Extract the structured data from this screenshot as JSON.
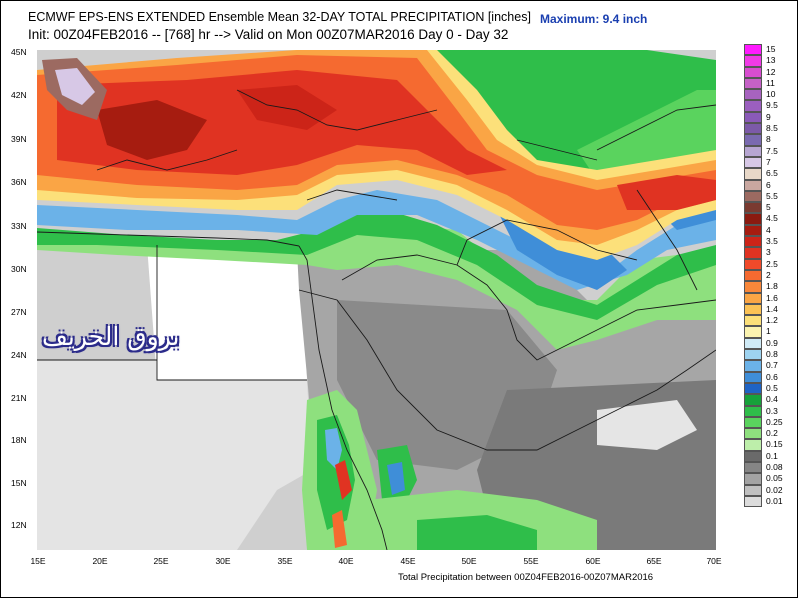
{
  "header": {
    "line1": "ECMWF EPS-ENS EXTENDED Ensemble Mean 32-DAY TOTAL PRECIPITATION [inches]",
    "line2": "Init: 00Z04FEB2016 -- [768] hr --> Valid on Mon 00Z07MAR2016  Day 0 - Day 32",
    "maximum": "Maximum: 9.4 inch"
  },
  "axes": {
    "y_labels": [
      "45N",
      "42N",
      "39N",
      "36N",
      "33N",
      "30N",
      "27N",
      "24N",
      "21N",
      "18N",
      "15N",
      "12N"
    ],
    "x_labels": [
      "15E",
      "20E",
      "25E",
      "30E",
      "35E",
      "40E",
      "45E",
      "50E",
      "55E",
      "60E",
      "65E",
      "70E"
    ]
  },
  "watermark": "بروق الخريف",
  "footer": "Total Precipitation between 00Z04FEB2016-00Z07MAR2016",
  "legend": {
    "levels": [
      {
        "label": "15",
        "color": "#ff1aff"
      },
      {
        "label": "13",
        "color": "#f03ae6"
      },
      {
        "label": "12",
        "color": "#d84dd0"
      },
      {
        "label": "11",
        "color": "#c561c6"
      },
      {
        "label": "10",
        "color": "#a763bf"
      },
      {
        "label": "9.5",
        "color": "#9b5fbf"
      },
      {
        "label": "9",
        "color": "#8a5ab8"
      },
      {
        "label": "8.5",
        "color": "#7c5aa8"
      },
      {
        "label": "8",
        "color": "#7a6ab0"
      },
      {
        "label": "7.5",
        "color": "#b7a6d2"
      },
      {
        "label": "7",
        "color": "#d7c8e6"
      },
      {
        "label": "6.5",
        "color": "#e8d8c8"
      },
      {
        "label": "6",
        "color": "#c9a7a0"
      },
      {
        "label": "5.5",
        "color": "#9c6a61"
      },
      {
        "label": "5",
        "color": "#7a3a30"
      },
      {
        "label": "4.5",
        "color": "#8b1a10"
      },
      {
        "label": "4",
        "color": "#a61c10"
      },
      {
        "label": "3.5",
        "color": "#cc2418"
      },
      {
        "label": "3",
        "color": "#e03322"
      },
      {
        "label": "2.5",
        "color": "#f04a2a"
      },
      {
        "label": "2",
        "color": "#f56a30"
      },
      {
        "label": "1.8",
        "color": "#f8873a"
      },
      {
        "label": "1.6",
        "color": "#faa545"
      },
      {
        "label": "1.4",
        "color": "#fbc255"
      },
      {
        "label": "1.2",
        "color": "#fce07a"
      },
      {
        "label": "1",
        "color": "#fbf3b0"
      },
      {
        "label": "0.9",
        "color": "#cfeaf6"
      },
      {
        "label": "0.8",
        "color": "#9ed3f0"
      },
      {
        "label": "0.7",
        "color": "#6bb2e8"
      },
      {
        "label": "0.6",
        "color": "#3f8ed8"
      },
      {
        "label": "0.5",
        "color": "#1f63c4"
      },
      {
        "label": "0.4",
        "color": "#16a23a"
      },
      {
        "label": "0.3",
        "color": "#2fbe4a"
      },
      {
        "label": "0.25",
        "color": "#5ad35e"
      },
      {
        "label": "0.2",
        "color": "#8ee07e"
      },
      {
        "label": "0.15",
        "color": "#bdeeaa"
      },
      {
        "label": "0.1",
        "color": "#6a6a6a"
      },
      {
        "label": "0.08",
        "color": "#858585"
      },
      {
        "label": "0.05",
        "color": "#a3a3a3"
      },
      {
        "label": "0.02",
        "color": "#c0c0c0"
      },
      {
        "label": "0.01",
        "color": "#dcdcdc"
      }
    ]
  }
}
